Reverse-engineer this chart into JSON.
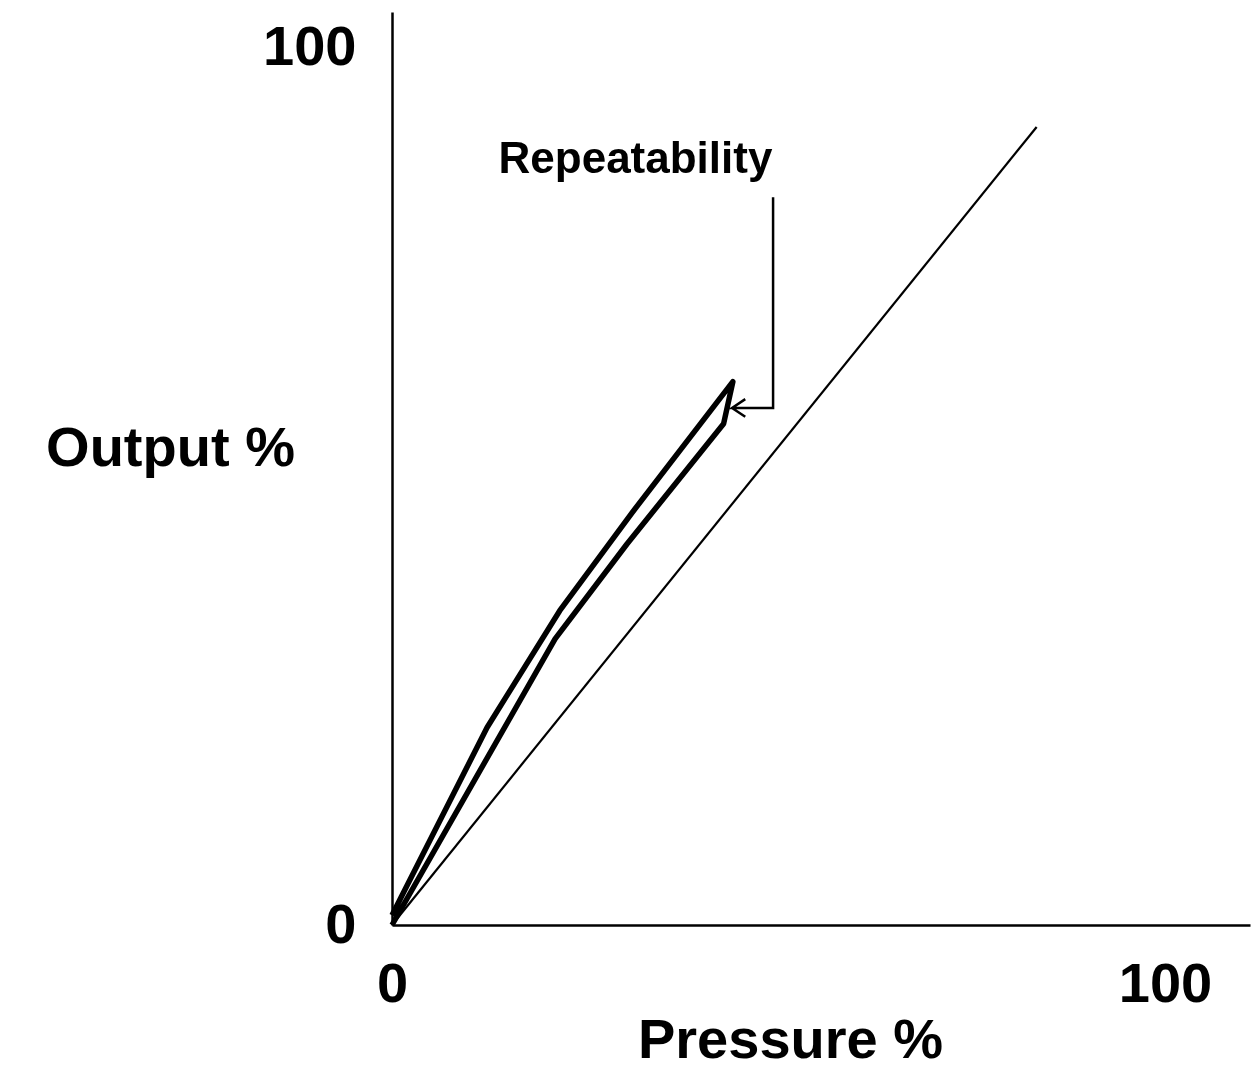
{
  "chart_data": {
    "type": "line",
    "xlabel": "Pressure %",
    "ylabel": "Output %",
    "xlim": [
      0,
      111
    ],
    "ylim": [
      0,
      104
    ],
    "xticks": [
      0,
      100
    ],
    "yticks": [
      0,
      100
    ],
    "grid": false,
    "marker": "none",
    "line_style": "solid",
    "annotations": [
      "Repeatability"
    ],
    "series": [
      {
        "color": "#000000",
        "x": [
          0,
          83.4
        ],
        "values": [
          0,
          90.9
        ]
      },
      {
        "color": "#000000",
        "x": [
          0,
          12.3,
          21.7,
          31.0,
          44.1,
          42.9,
          30.4,
          21.1,
          0
        ],
        "values": [
          1.1,
          22.5,
          35.8,
          46.9,
          61.9,
          57.1,
          43.4,
          32.6,
          0
        ]
      }
    ]
  }
}
